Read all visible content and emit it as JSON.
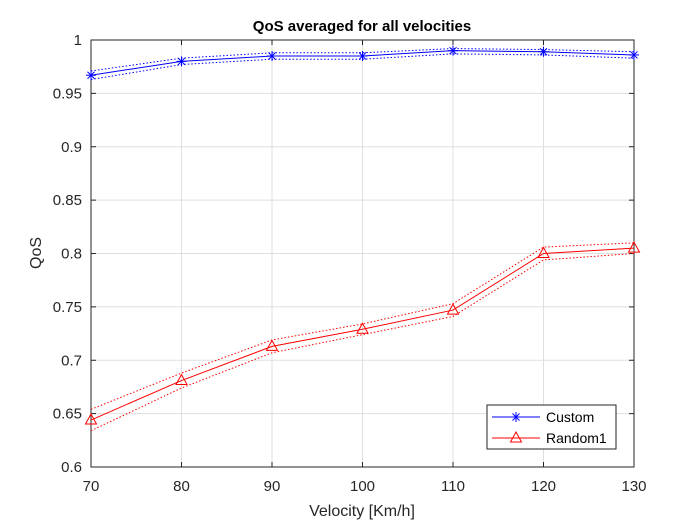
{
  "chart_data": {
    "type": "line",
    "title": "QoS averaged for all velocities",
    "xlabel": "Velocity [Km/h]",
    "ylabel": "QoS",
    "xlim": [
      70,
      130
    ],
    "ylim": [
      0.6,
      1
    ],
    "xticks": [
      70,
      80,
      90,
      100,
      110,
      120,
      130
    ],
    "yticks": [
      0.6,
      0.65,
      0.7,
      0.75,
      0.8,
      0.85,
      0.9,
      0.95,
      1
    ],
    "ytick_labels": [
      "0.6",
      "0.65",
      "0.7",
      "0.75",
      "0.8",
      "0.85",
      "0.9",
      "0.95",
      "1"
    ],
    "grid": true,
    "legend_position": "bottom-right",
    "x": [
      70,
      80,
      90,
      100,
      110,
      120,
      130
    ],
    "series": [
      {
        "name": "Custom",
        "color": "#0000ff",
        "marker": "asterisk",
        "values": [
          0.967,
          0.98,
          0.985,
          0.985,
          0.99,
          0.989,
          0.986
        ],
        "upper": [
          0.971,
          0.983,
          0.988,
          0.988,
          0.992,
          0.991,
          0.989
        ],
        "lower": [
          0.963,
          0.977,
          0.982,
          0.982,
          0.987,
          0.986,
          0.983
        ]
      },
      {
        "name": "Random1",
        "color": "#ff0000",
        "marker": "triangle",
        "values": [
          0.644,
          0.681,
          0.713,
          0.729,
          0.747,
          0.8,
          0.805
        ],
        "upper": [
          0.654,
          0.688,
          0.719,
          0.734,
          0.753,
          0.806,
          0.81
        ],
        "lower": [
          0.634,
          0.674,
          0.707,
          0.724,
          0.741,
          0.794,
          0.8
        ]
      }
    ]
  }
}
